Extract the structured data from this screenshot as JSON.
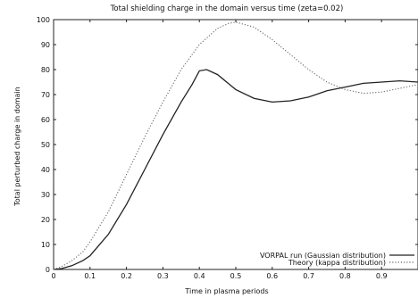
{
  "chart_data": {
    "type": "line",
    "title": "Total shielding charge in the domain versus time (zeta=0.02)",
    "xlabel": "Time in plasma periods",
    "ylabel": "Total perturbed charge in domain",
    "xlim": [
      0,
      1.0
    ],
    "ylim": [
      0,
      100
    ],
    "xticks": [
      0,
      0.1,
      0.2,
      0.3,
      0.4,
      0.5,
      0.6,
      0.7,
      0.8,
      0.9
    ],
    "yticks": [
      0,
      10,
      20,
      30,
      40,
      50,
      60,
      70,
      80,
      90,
      100
    ],
    "grid": false,
    "legend_position": "bottom-right",
    "series": [
      {
        "name": "VORPAL run (Gaussian distribution)",
        "style": "solid",
        "color": "#222222",
        "x": [
          0,
          0.02,
          0.05,
          0.08,
          0.1,
          0.15,
          0.2,
          0.25,
          0.3,
          0.35,
          0.38,
          0.4,
          0.42,
          0.45,
          0.5,
          0.55,
          0.6,
          0.65,
          0.7,
          0.75,
          0.8,
          0.85,
          0.9,
          0.95,
          1.0
        ],
        "y": [
          0,
          0.3,
          1.5,
          3.5,
          5.5,
          14,
          26,
          40,
          54,
          67,
          74,
          79.5,
          80,
          78,
          72,
          68.5,
          67,
          67.5,
          69,
          71.5,
          73,
          74.5,
          75,
          75.5,
          75
        ]
      },
      {
        "name": "Theory (kappa distribution)",
        "style": "dotted",
        "color": "#666666",
        "x": [
          0,
          0.02,
          0.05,
          0.08,
          0.1,
          0.15,
          0.2,
          0.25,
          0.3,
          0.35,
          0.4,
          0.45,
          0.48,
          0.5,
          0.55,
          0.6,
          0.65,
          0.7,
          0.75,
          0.8,
          0.85,
          0.9,
          0.95,
          1.0
        ],
        "y": [
          0,
          1,
          3.5,
          7,
          11,
          23,
          38,
          53,
          67,
          80,
          90,
          96.5,
          98.5,
          99,
          97,
          92,
          86,
          80,
          75,
          72,
          70.5,
          71,
          72.5,
          74
        ]
      }
    ]
  }
}
